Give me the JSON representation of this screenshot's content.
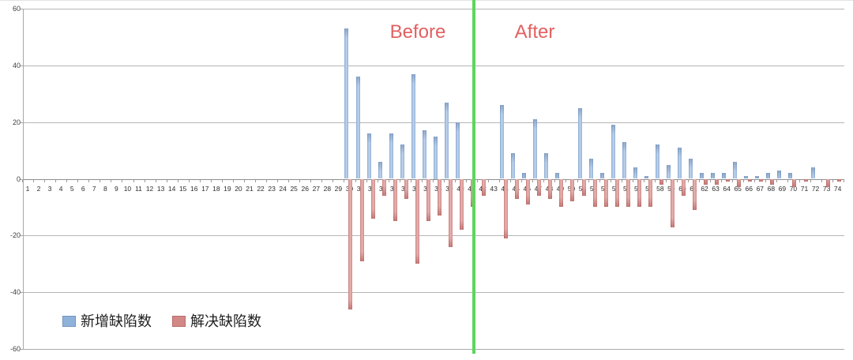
{
  "chart_data": {
    "type": "bar",
    "title": "",
    "categories": [
      1,
      2,
      3,
      4,
      5,
      6,
      7,
      8,
      9,
      10,
      11,
      12,
      13,
      14,
      15,
      16,
      17,
      18,
      19,
      20,
      21,
      22,
      23,
      24,
      25,
      26,
      27,
      28,
      29,
      30,
      31,
      32,
      33,
      34,
      35,
      36,
      37,
      38,
      39,
      40,
      41,
      42,
      43,
      44,
      45,
      46,
      47,
      48,
      49,
      50,
      51,
      52,
      53,
      54,
      55,
      56,
      57,
      58,
      59,
      60,
      61,
      62,
      63,
      64,
      65,
      66,
      67,
      68,
      69,
      70,
      71,
      72,
      73,
      74
    ],
    "series": [
      {
        "name": "新增缺陷数",
        "color": "#93b3da",
        "values": [
          0,
          0,
          0,
          0,
          0,
          0,
          0,
          0,
          0,
          0,
          0,
          0,
          0,
          0,
          0,
          0,
          0,
          0,
          0,
          0,
          0,
          0,
          0,
          0,
          0,
          0,
          0,
          0,
          0,
          53,
          36,
          16,
          6,
          16,
          12,
          37,
          17,
          15,
          27,
          20,
          0,
          0,
          0,
          26,
          9,
          2,
          21,
          9,
          2,
          0,
          25,
          7,
          2,
          19,
          13,
          4,
          1,
          12,
          5,
          11,
          7,
          2,
          2,
          2,
          6,
          1,
          1,
          2,
          3,
          2,
          0,
          4,
          0,
          0
        ]
      },
      {
        "name": "解决缺陷数",
        "color": "#d18e8b",
        "values": [
          0,
          0,
          0,
          0,
          0,
          0,
          0,
          0,
          0,
          0,
          0,
          0,
          0,
          0,
          0,
          0,
          0,
          0,
          0,
          0,
          0,
          0,
          0,
          0,
          0,
          0,
          0,
          0,
          0,
          -46,
          -29,
          -14,
          -6,
          -15,
          -7,
          -30,
          -15,
          -13,
          -24,
          -18,
          -10,
          -6,
          0,
          -21,
          -7,
          -9,
          -6,
          -7,
          -10,
          -8,
          -6,
          -10,
          -10,
          -10,
          -10,
          -10,
          -10,
          -2,
          -17,
          -6,
          -11,
          -2,
          -2,
          -1,
          -3,
          -1,
          -1,
          -2,
          0,
          -3,
          -1,
          0,
          -3,
          -1
        ]
      }
    ],
    "ylim": [
      -60,
      60
    ],
    "yticks": [
      60,
      40,
      20,
      0,
      -20,
      -40,
      -60
    ],
    "grid": true,
    "legend_position": "bottom-left",
    "annotations": [
      {
        "text": "Before",
        "color": "#e26060"
      },
      {
        "text": "After",
        "color": "#e26060"
      }
    ],
    "divider": {
      "between_categories": [
        41,
        42
      ],
      "color": "#5cd65c"
    }
  }
}
